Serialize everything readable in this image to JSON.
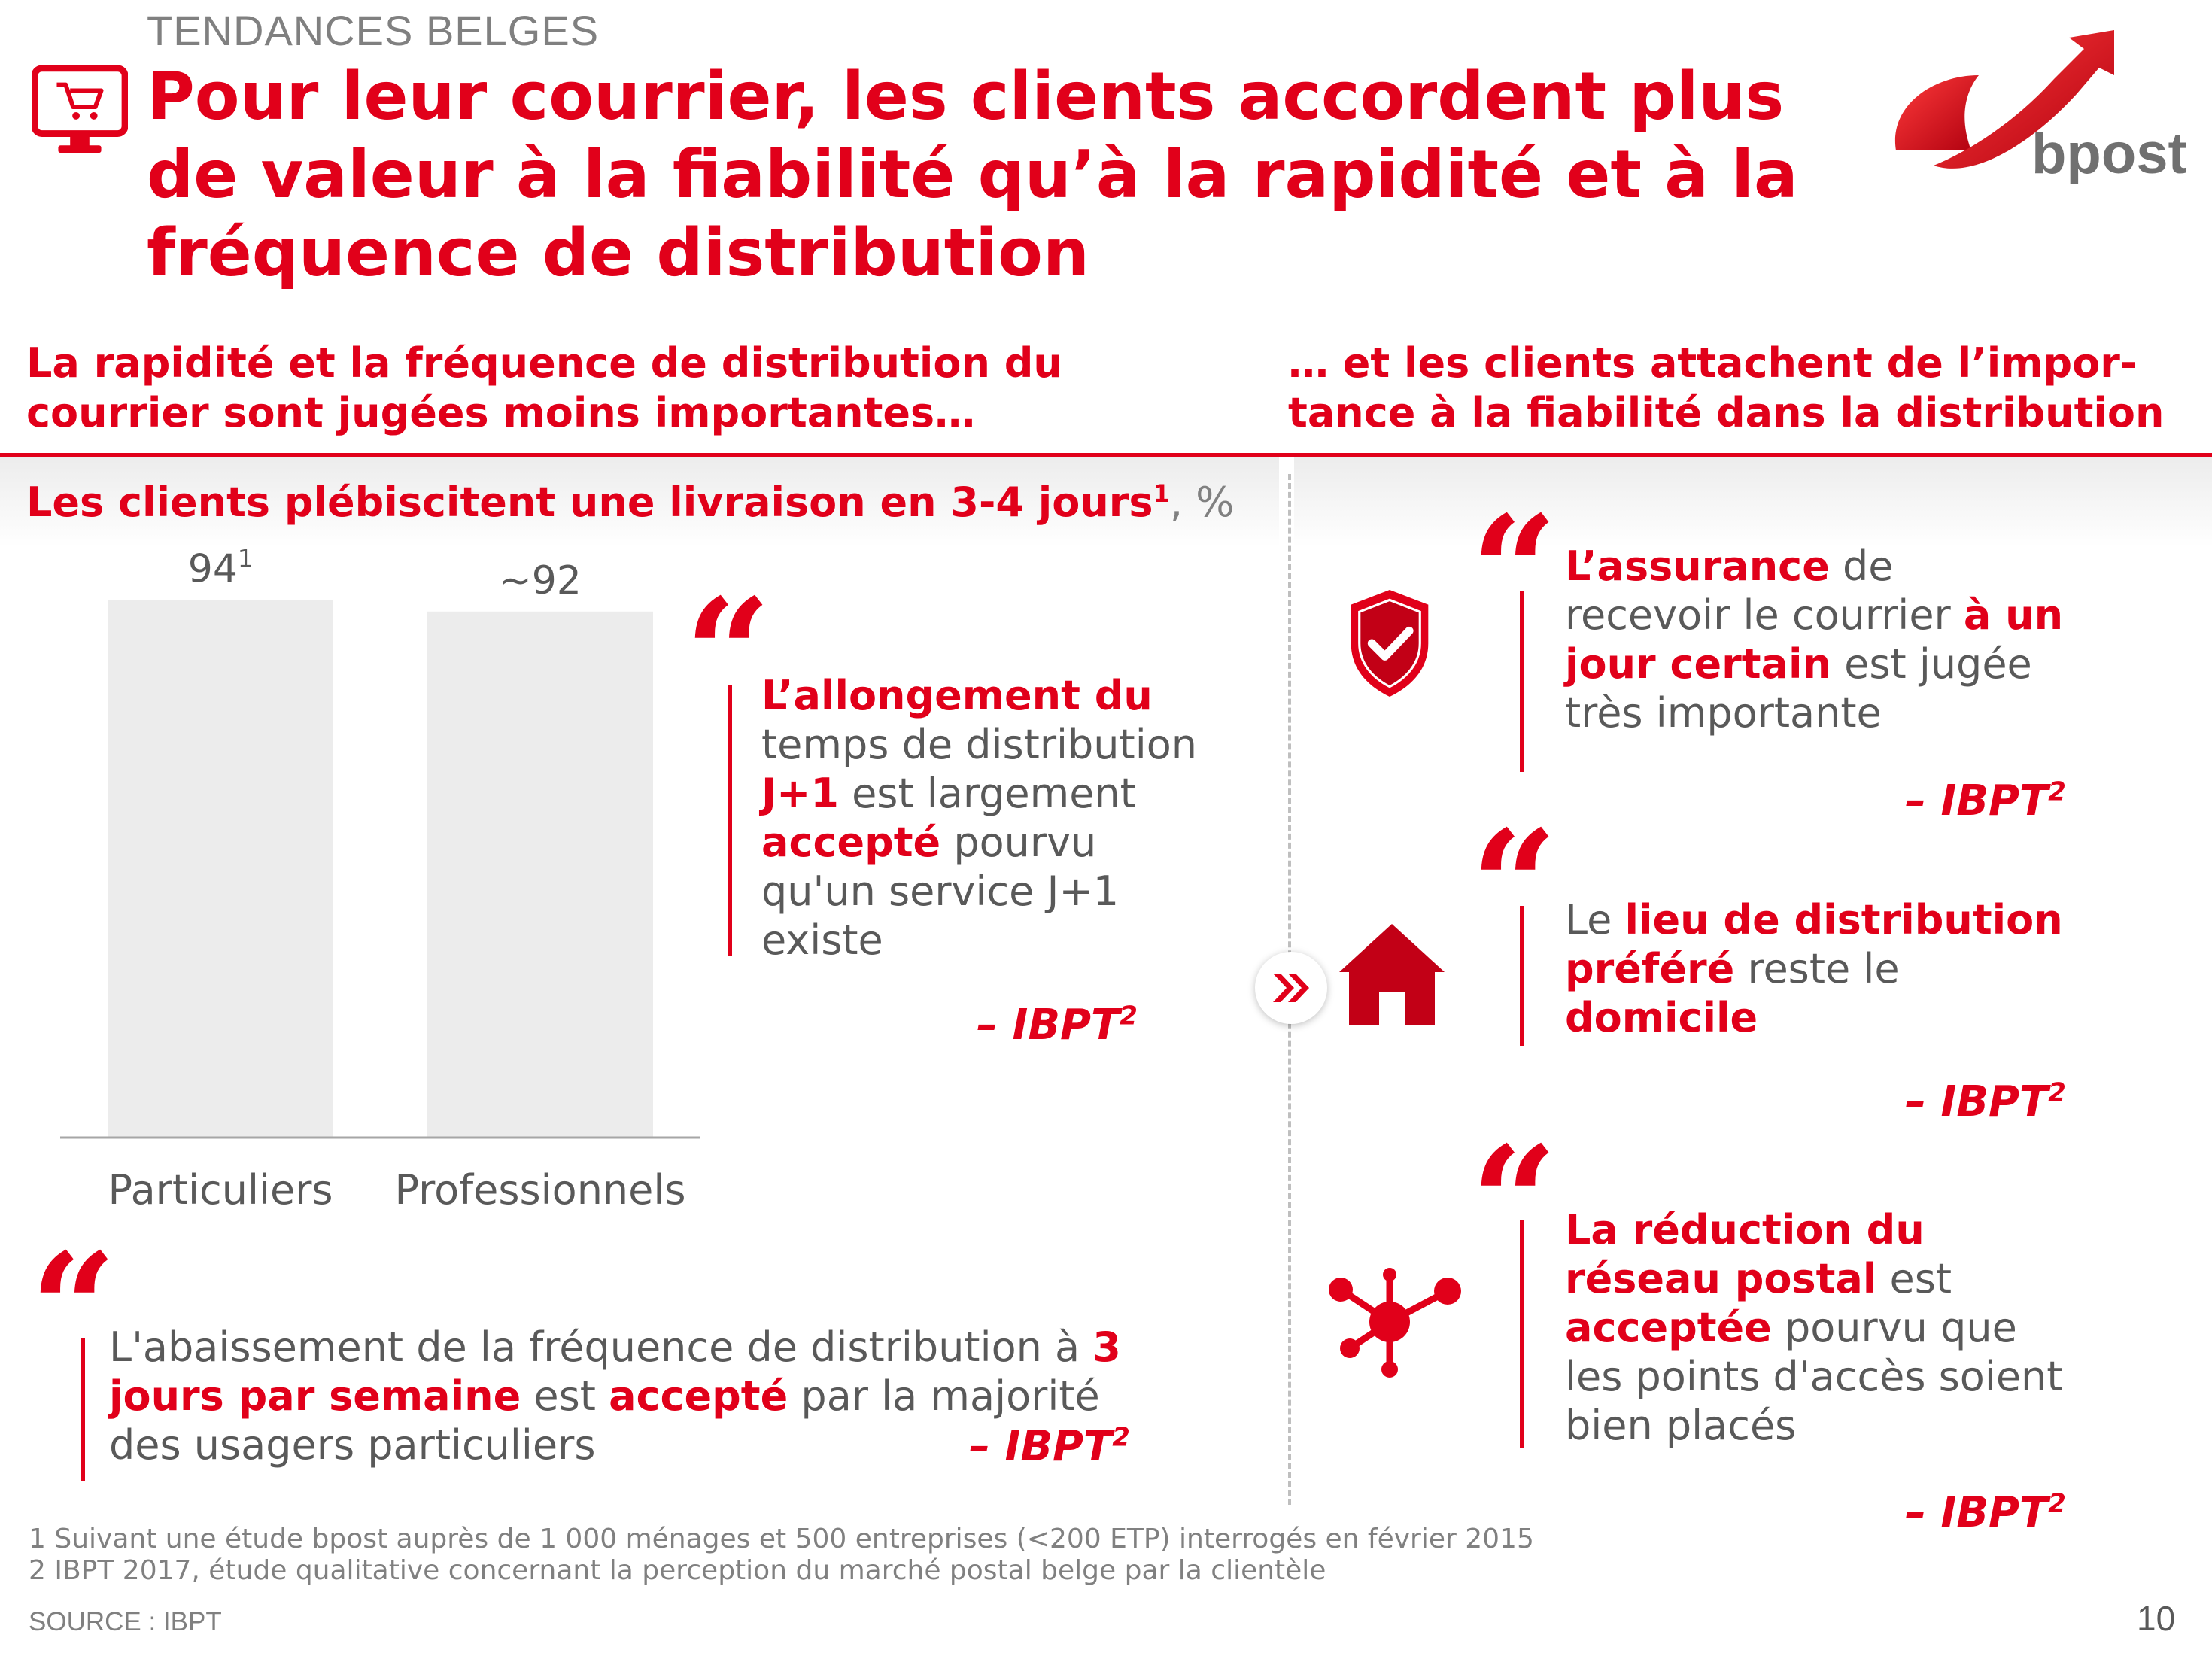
{
  "header": {
    "kicker": "TENDANCES BELGES",
    "title": "Pour leur courrier, les clients accordent plus de valeur à la fiabilité qu’à la rapidité et à la fréquence de distribution",
    "logo_text": "bpost"
  },
  "subheads": {
    "left": [
      "La rapidité et la fréquence de distribution du",
      "courrier sont jugées moins importantes…"
    ],
    "right": [
      "… et les clients attachent de l’impor-",
      "tance à la fiabilité dans la distribution"
    ]
  },
  "chart_title": {
    "text": "Les clients plébiscitent une livraison en 3-4 jours",
    "sup": "1",
    "unit": ", %"
  },
  "chart_data": {
    "type": "bar",
    "categories": [
      "Particuliers",
      "Professionnels"
    ],
    "values": [
      94,
      92
    ],
    "data_labels": [
      "94",
      "~92"
    ],
    "data_label_sups": [
      "1",
      ""
    ],
    "ylim": [
      0,
      100
    ],
    "xlabel": "",
    "ylabel": "",
    "bar_color": "#ececec",
    "grid": false
  },
  "quotes": {
    "q1": {
      "segments": [
        {
          "t": "L’allongement du",
          "b": true
        },
        {
          "br": true
        },
        {
          "t": "temps de distribution",
          "b": false
        },
        {
          "br": true
        },
        {
          "t": "J+1",
          "b": true
        },
        {
          "t": " est largement",
          "b": false
        },
        {
          "br": true
        },
        {
          "t": "accepté",
          "b": true
        },
        {
          "t": " pourvu",
          "b": false
        },
        {
          "br": true
        },
        {
          "t": "qu'un service J+1",
          "b": false
        },
        {
          "br": true
        },
        {
          "t": "existe",
          "b": false
        }
      ],
      "source": "– IBPT",
      "source_sup": "2"
    },
    "q2": {
      "segments": [
        {
          "t": "L'abaissement de la fréquence de distribution à ",
          "b": false
        },
        {
          "t": "3",
          "b": true
        },
        {
          "br": true
        },
        {
          "t": "jours par semaine",
          "b": true
        },
        {
          "t": " est ",
          "b": false
        },
        {
          "t": "accepté",
          "b": true
        },
        {
          "t": " par la majorité",
          "b": false
        },
        {
          "br": true
        },
        {
          "t": "des usagers particuliers",
          "b": false
        }
      ],
      "source": "– IBPT",
      "source_sup": "2"
    },
    "q3": {
      "segments": [
        {
          "t": "L’assurance",
          "b": true
        },
        {
          "t": " de",
          "b": false
        },
        {
          "br": true
        },
        {
          "t": "recevoir le courrier ",
          "b": false
        },
        {
          "t": "à un",
          "b": true
        },
        {
          "br": true
        },
        {
          "t": "jour certain",
          "b": true
        },
        {
          "t": " est jugée",
          "b": false
        },
        {
          "br": true
        },
        {
          "t": "très importante",
          "b": false
        }
      ],
      "source": "– IBPT",
      "source_sup": "2"
    },
    "q4": {
      "segments": [
        {
          "t": "Le ",
          "b": false
        },
        {
          "t": "lieu de distribution",
          "b": true
        },
        {
          "br": true
        },
        {
          "t": "préféré",
          "b": true
        },
        {
          "t": " reste le",
          "b": false
        },
        {
          "br": true
        },
        {
          "t": "domicile",
          "b": true
        }
      ],
      "source": "– IBPT",
      "source_sup": "2"
    },
    "q5": {
      "segments": [
        {
          "t": "La réduction du",
          "b": true
        },
        {
          "br": true
        },
        {
          "t": "réseau postal",
          "b": true
        },
        {
          "t": " est",
          "b": false
        },
        {
          "br": true
        },
        {
          "t": "acceptée",
          "b": true
        },
        {
          "t": " pourvu que",
          "b": false
        },
        {
          "br": true
        },
        {
          "t": "les points d'accès soient",
          "b": false
        },
        {
          "br": true
        },
        {
          "t": "bien placés",
          "b": false
        }
      ],
      "source": "– IBPT",
      "source_sup": "2"
    }
  },
  "quote_mark": "“",
  "footnotes": {
    "f1": "1 Suivant une étude bpost auprès de 1 000 ménages et 500 entreprises (<200 ETP) interrogés en février 2015",
    "f2": "2 IBPT 2017, étude qualitative concernant la perception du marché postal belge par la clientèle"
  },
  "source_label": "SOURCE : IBPT",
  "page_number": "10",
  "icons": {
    "header": "shopping-cart-monitor-icon",
    "shield": "shield-check-icon",
    "home": "house-icon",
    "network": "network-nodes-icon",
    "chevron": "double-chevron-right-icon"
  },
  "colors": {
    "accent": "#e1001a",
    "text": "#595959",
    "muted": "#808080",
    "bar": "#ececec"
  }
}
